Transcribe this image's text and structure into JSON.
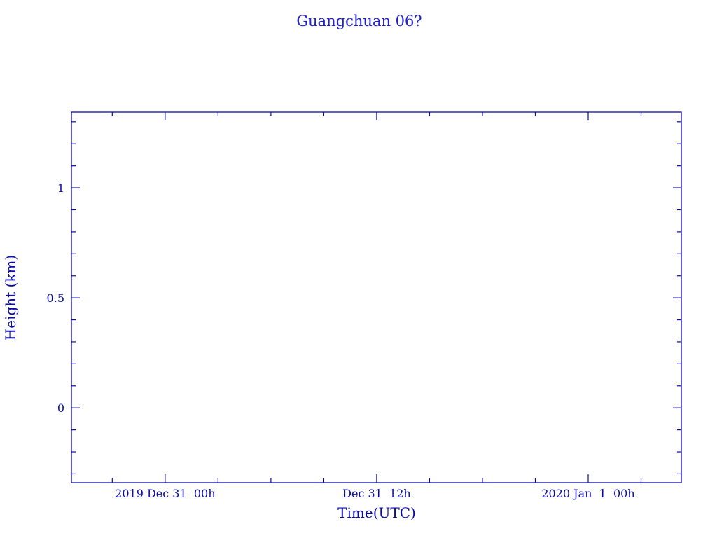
{
  "chart_data": {
    "type": "line",
    "title": "Guangchuan 06?",
    "xlabel": "Time(UTC)",
    "ylabel": "Height (km)",
    "x_tick_labels": [
      "2019 Dec 31  00h",
      "Dec 31  12h",
      "2020 Jan  1  00h"
    ],
    "x_ticks": [
      "2019-12-31T00:00",
      "2019-12-31T12:00",
      "2020-01-01T00:00"
    ],
    "x_minor_step_hours": 3,
    "xlim": [
      "2019-12-30T18:41",
      "2020-01-01T05:17"
    ],
    "y_tick_labels": [
      "0",
      "0.5",
      "1"
    ],
    "y_ticks": [
      0,
      0.5,
      1
    ],
    "y_minor_step": 0.1,
    "ylim": [
      -0.34,
      1.344
    ],
    "grid": false,
    "series": [],
    "colors": {
      "title": "#1f1fd0",
      "axes": "#0a0aa8"
    }
  }
}
